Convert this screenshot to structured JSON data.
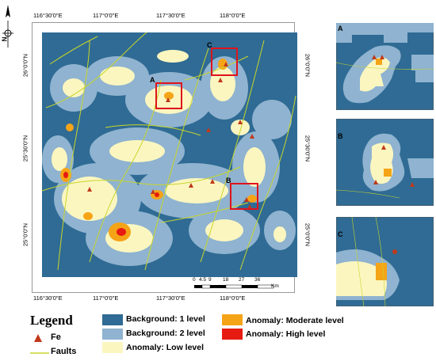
{
  "map": {
    "top_lon_labels": [
      "116°30'0\"E",
      "117°0'0\"E",
      "117°30'0\"E",
      "118°0'0\"E"
    ],
    "bottom_lon_labels": [
      "116°30'0\"E",
      "117°0'0\"E",
      "117°30'0\"E",
      "118°0'0\"E"
    ],
    "left_lat_labels": [
      "26°0'0\"N",
      "25°30'0\"N",
      "25°0'0\"N"
    ],
    "right_lat_labels": [
      "26°0'0\"N",
      "25°30'0\"N",
      "25°0'0\"N"
    ],
    "boxes": [
      "A",
      "B",
      "C"
    ],
    "scale_labels": [
      "0",
      "4.5",
      "9",
      "18",
      "27",
      "36"
    ],
    "scale_unit": "Km",
    "north_label": "N"
  },
  "insets": [
    "A",
    "B",
    "C"
  ],
  "legend": {
    "title": "Legend",
    "fe_label": "Fe",
    "faults_label": "Faults",
    "items": [
      {
        "label": "Background: 1 level",
        "color": "#2f6b94"
      },
      {
        "label": "Background: 2 level",
        "color": "#8fb3d0"
      },
      {
        "label": "Anomaly: Low level",
        "color": "#fbf6c0"
      },
      {
        "label": "Anomaly: Moderate level",
        "color": "#f5a417"
      },
      {
        "label": "Anomaly: High level",
        "color": "#e61b12"
      }
    ]
  },
  "colors": {
    "bg1": "#2f6b94",
    "bg2": "#8fb3d0",
    "low": "#fbf6c0",
    "moderate": "#f5a417",
    "high": "#e61b12",
    "fault": "#c8d62a",
    "box": "#e0141c",
    "fe": "#c0391a"
  }
}
